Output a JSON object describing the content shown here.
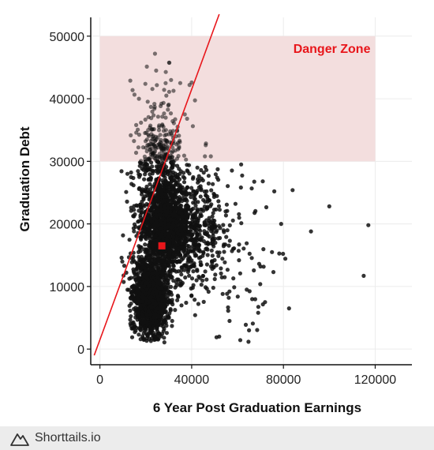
{
  "chart_data": {
    "type": "scatter",
    "title": "",
    "xlabel": "6 Year Post Graduation Earnings",
    "ylabel": "Graduation Debt",
    "xlim": [
      -4000,
      136000
    ],
    "ylim": [
      -2500,
      53000
    ],
    "x_ticks": [
      0,
      40000,
      80000,
      120000
    ],
    "x_tick_labels": [
      "0",
      "40000",
      "80000",
      "120000"
    ],
    "y_ticks": [
      0,
      10000,
      20000,
      30000,
      40000,
      50000
    ],
    "y_tick_labels": [
      "0",
      "10000",
      "20000",
      "30000",
      "40000",
      "50000"
    ],
    "grid": true,
    "danger_zone": {
      "label": "Danger Zone",
      "x_range": [
        0,
        120000
      ],
      "y_range": [
        30000,
        50000
      ],
      "color": "#f3dede",
      "label_color": "#e8161b"
    },
    "reference_line": {
      "slope": 1.0,
      "intercept": 1500,
      "x_range": [
        -2500,
        52000
      ],
      "color": "#e8161b"
    },
    "highlight_point": {
      "x": 27000,
      "y": 16500,
      "color": "#e8161b"
    },
    "point_color": "#111111",
    "clusters": [
      {
        "n": 1400,
        "cx": 22000,
        "cy": 8000,
        "sx": 3500,
        "sy": 3000
      },
      {
        "n": 1300,
        "cx": 28000,
        "cy": 20000,
        "sx": 5500,
        "sy": 4000
      },
      {
        "n": 600,
        "cx": 38000,
        "cy": 19000,
        "sx": 10000,
        "sy": 5000
      },
      {
        "n": 250,
        "cx": 26000,
        "cy": 31000,
        "sx": 4500,
        "sy": 3000
      },
      {
        "n": 40,
        "cx": 26000,
        "cy": 38000,
        "sx": 6000,
        "sy": 3500
      },
      {
        "n": 80,
        "cx": 55000,
        "cy": 15000,
        "sx": 12000,
        "sy": 6000
      }
    ],
    "outliers": [
      {
        "x": 100000,
        "y": 22800
      },
      {
        "x": 117000,
        "y": 19800
      },
      {
        "x": 115000,
        "y": 11700
      },
      {
        "x": 92000,
        "y": 18800
      },
      {
        "x": 84000,
        "y": 25400
      },
      {
        "x": 79000,
        "y": 20000
      },
      {
        "x": 76000,
        "y": 25200
      },
      {
        "x": 71000,
        "y": 26800
      },
      {
        "x": 72000,
        "y": 7500
      },
      {
        "x": 69000,
        "y": 5800
      },
      {
        "x": 65000,
        "y": 3000
      },
      {
        "x": 52000,
        "y": 2000
      },
      {
        "x": 70000,
        "y": 13200
      },
      {
        "x": 64000,
        "y": 9500
      },
      {
        "x": 75000,
        "y": 15500
      },
      {
        "x": 24000,
        "y": 47200
      },
      {
        "x": 24500,
        "y": 44500
      },
      {
        "x": 31000,
        "y": 43000
      },
      {
        "x": 35000,
        "y": 42500
      },
      {
        "x": 40000,
        "y": 42600
      },
      {
        "x": 17000,
        "y": 40000
      },
      {
        "x": 37000,
        "y": 37500
      },
      {
        "x": 38000,
        "y": 36800
      },
      {
        "x": 12000,
        "y": 28000
      }
    ]
  },
  "footer": {
    "brand": "Shorttails.io",
    "logo_icon": "mountain-outline-icon"
  }
}
